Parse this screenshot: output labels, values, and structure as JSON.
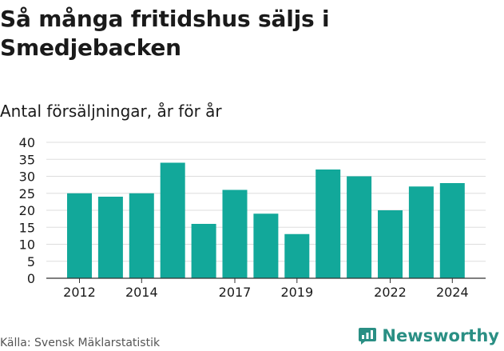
{
  "title": "Så många fritidshus säljs i Smedjebacken",
  "subtitle": "Antal försäljningar, år för år",
  "source": "Källa: Svensk Mäklarstatistik",
  "brand": "Newsworthy",
  "colors": {
    "bar": "#12a89a",
    "grid": "#dddddd",
    "axis": "#333333",
    "brand": "#2a8f84"
  },
  "chart_data": {
    "type": "bar",
    "categories": [
      "2012",
      "2013",
      "2014",
      "2015",
      "2016",
      "2017",
      "2018",
      "2019",
      "2020",
      "2021",
      "2022",
      "2023",
      "2024"
    ],
    "x_tick_labels": [
      "2012",
      "",
      "2014",
      "",
      "",
      "2017",
      "",
      "2019",
      "",
      "",
      "2022",
      "",
      "2024"
    ],
    "values": [
      25,
      24,
      25,
      34,
      16,
      26,
      19,
      13,
      32,
      30,
      20,
      27,
      28
    ],
    "ylim": [
      0,
      40
    ],
    "yticks": [
      0,
      5,
      10,
      15,
      20,
      25,
      30,
      35,
      40
    ],
    "grid": true,
    "xlabel": "",
    "ylabel": ""
  }
}
